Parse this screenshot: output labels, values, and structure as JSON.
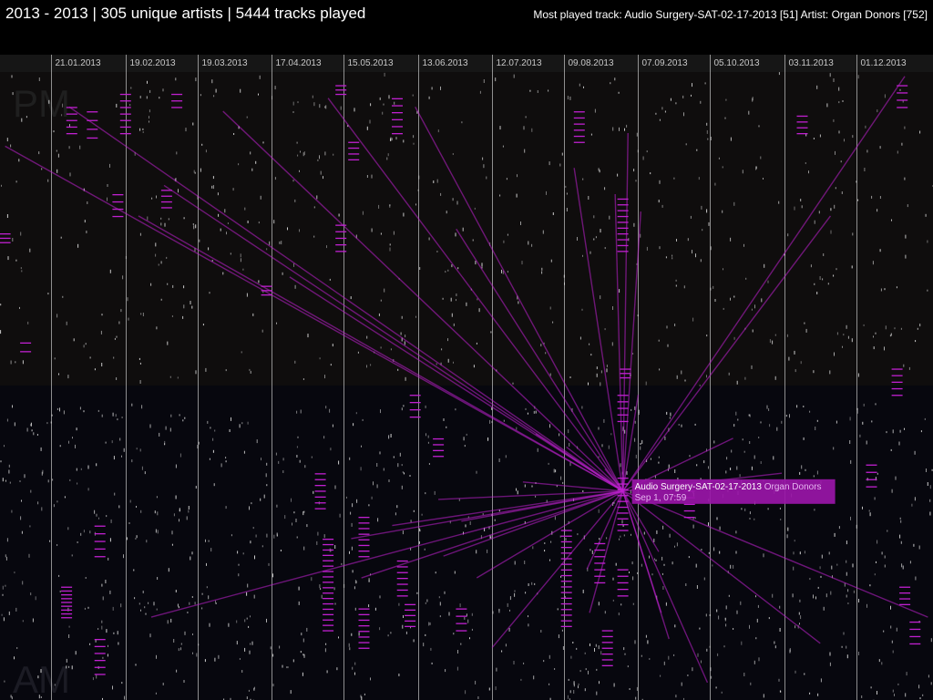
{
  "header": {
    "title": "2013 - 2013 | 305 unique artists | 5444 tracks played",
    "most_played": "Most played track: Audio Surgery-SAT-02-17-2013 [51]  Artist: Organ Donors [752]"
  },
  "colors": {
    "background": "#000000",
    "pm_band": "#0f0d0d",
    "am_band": "#07070e",
    "highlight": "#c020d0",
    "highlight_box": "#9a16a8",
    "track_mark": "#dddddd",
    "gridline": "#bbbbbb"
  },
  "chart_data": {
    "type": "scatter",
    "title": "",
    "xlabel": "",
    "ylabel": "",
    "band_labels": [
      "PM",
      "AM"
    ],
    "x_ticks": [
      "21.01.2013",
      "19.02.2013",
      "19.03.2013",
      "17.04.2013",
      "15.05.2013",
      "13.06.2013",
      "12.07.2013",
      "09.08.2013",
      "07.09.2013",
      "05.10.2013",
      "03.11.2013",
      "01.12.2013"
    ],
    "xlim": [
      "2013-01-01",
      "2013-12-31"
    ],
    "ylim": [
      "00:00",
      "24:00"
    ],
    "highlight": {
      "track": "Audio Surgery-SAT-02-17-2013",
      "artist": "Organ Donors",
      "time_label": "Sep 1, 07:59",
      "date": "2013-09-01",
      "time": "07:59"
    },
    "highlight_plays": [
      {
        "date": "2013-01-03",
        "time": "21:10"
      },
      {
        "date": "2013-01-28",
        "time": "22:40"
      },
      {
        "date": "2013-02-24",
        "time": "18:30"
      },
      {
        "date": "2013-03-01",
        "time": "03:10"
      },
      {
        "date": "2013-03-06",
        "time": "19:40"
      },
      {
        "date": "2013-03-29",
        "time": "22:30"
      },
      {
        "date": "2013-04-24",
        "time": "16:10"
      },
      {
        "date": "2013-05-09",
        "time": "23:00"
      },
      {
        "date": "2013-05-18",
        "time": "06:10"
      },
      {
        "date": "2013-05-22",
        "time": "04:40"
      },
      {
        "date": "2013-06-03",
        "time": "06:40"
      },
      {
        "date": "2013-06-12",
        "time": "22:40"
      },
      {
        "date": "2013-06-21",
        "time": "07:40"
      },
      {
        "date": "2013-06-23",
        "time": "05:30"
      },
      {
        "date": "2013-06-28",
        "time": "18:00"
      },
      {
        "date": "2013-06-30",
        "time": "06:50"
      },
      {
        "date": "2013-07-06",
        "time": "04:40"
      },
      {
        "date": "2013-07-12",
        "time": "02:00"
      },
      {
        "date": "2013-07-24",
        "time": "08:20"
      },
      {
        "date": "2013-07-29",
        "time": "10:10"
      },
      {
        "date": "2013-08-10",
        "time": "09:40"
      },
      {
        "date": "2013-08-13",
        "time": "20:20"
      },
      {
        "date": "2013-08-18",
        "time": "05:00"
      },
      {
        "date": "2013-08-19",
        "time": "03:20"
      },
      {
        "date": "2013-08-25",
        "time": "08:50"
      },
      {
        "date": "2013-08-29",
        "time": "19:20"
      },
      {
        "date": "2013-09-03",
        "time": "21:40"
      },
      {
        "date": "2013-09-07",
        "time": "11:40"
      },
      {
        "date": "2013-09-08",
        "time": "18:40"
      },
      {
        "date": "2013-09-15",
        "time": "05:40"
      },
      {
        "date": "2013-09-16",
        "time": "03:20"
      },
      {
        "date": "2013-09-19",
        "time": "02:20"
      },
      {
        "date": "2013-10-04",
        "time": "00:40"
      },
      {
        "date": "2013-10-14",
        "time": "10:00"
      },
      {
        "date": "2013-11-02",
        "time": "08:40"
      },
      {
        "date": "2013-11-17",
        "time": "02:10"
      },
      {
        "date": "2013-11-21",
        "time": "18:30"
      },
      {
        "date": "2013-12-20",
        "time": "23:50"
      },
      {
        "date": "2013-12-29",
        "time": "03:10"
      }
    ],
    "track_clusters": [
      {
        "date": "2013-01-03",
        "start": "17:50",
        "end": "17:30",
        "count": 3
      },
      {
        "date": "2013-01-11",
        "start": "13:40",
        "end": "13:20",
        "count": 2
      },
      {
        "date": "2013-01-27",
        "start": "04:20",
        "end": "03:10",
        "count": 9
      },
      {
        "date": "2013-01-29",
        "start": "22:40",
        "end": "21:40",
        "count": 5
      },
      {
        "date": "2013-02-06",
        "start": "22:30",
        "end": "21:30",
        "count": 4
      },
      {
        "date": "2013-02-09",
        "start": "02:20",
        "end": "01:00",
        "count": 6
      },
      {
        "date": "2013-02-09",
        "start": "06:40",
        "end": "05:30",
        "count": 5
      },
      {
        "date": "2013-02-16",
        "start": "19:20",
        "end": "18:30",
        "count": 4
      },
      {
        "date": "2013-02-19",
        "start": "23:10",
        "end": "21:40",
        "count": 7
      },
      {
        "date": "2013-03-07",
        "start": "19:30",
        "end": "18:50",
        "count": 4
      },
      {
        "date": "2013-03-11",
        "start": "23:10",
        "end": "22:40",
        "count": 3
      },
      {
        "date": "2013-04-15",
        "start": "15:50",
        "end": "15:30",
        "count": 3
      },
      {
        "date": "2013-05-06",
        "start": "08:40",
        "end": "07:20",
        "count": 7
      },
      {
        "date": "2013-05-09",
        "start": "06:10",
        "end": "02:40",
        "count": 18
      },
      {
        "date": "2013-05-14",
        "start": "23:30",
        "end": "23:10",
        "count": 3
      },
      {
        "date": "2013-05-14",
        "start": "18:10",
        "end": "17:10",
        "count": 5
      },
      {
        "date": "2013-05-19",
        "start": "21:20",
        "end": "20:40",
        "count": 4
      },
      {
        "date": "2013-05-23",
        "start": "07:00",
        "end": "05:30",
        "count": 8
      },
      {
        "date": "2013-05-23",
        "start": "03:30",
        "end": "02:00",
        "count": 8
      },
      {
        "date": "2013-06-05",
        "start": "23:00",
        "end": "21:40",
        "count": 6
      },
      {
        "date": "2013-06-07",
        "start": "05:20",
        "end": "04:00",
        "count": 7
      },
      {
        "date": "2013-06-10",
        "start": "03:40",
        "end": "02:50",
        "count": 5
      },
      {
        "date": "2013-06-12",
        "start": "11:40",
        "end": "10:50",
        "count": 4
      },
      {
        "date": "2013-06-21",
        "start": "10:00",
        "end": "09:20",
        "count": 4
      },
      {
        "date": "2013-06-30",
        "start": "03:30",
        "end": "02:40",
        "count": 4
      },
      {
        "date": "2013-08-10",
        "start": "06:30",
        "end": "02:50",
        "count": 18
      },
      {
        "date": "2013-08-15",
        "start": "22:30",
        "end": "21:20",
        "count": 6
      },
      {
        "date": "2013-08-23",
        "start": "06:00",
        "end": "04:30",
        "count": 7
      },
      {
        "date": "2013-08-26",
        "start": "02:40",
        "end": "01:20",
        "count": 7
      },
      {
        "date": "2013-09-01",
        "start": "19:10",
        "end": "17:10",
        "count": 10
      },
      {
        "date": "2013-09-01",
        "start": "11:40",
        "end": "10:40",
        "count": 5
      },
      {
        "date": "2013-09-01",
        "start": "08:30",
        "end": "06:30",
        "count": 10
      },
      {
        "date": "2013-09-01",
        "start": "05:00",
        "end": "04:00",
        "count": 5
      },
      {
        "date": "2013-09-02",
        "start": "12:40",
        "end": "12:20",
        "count": 3
      },
      {
        "date": "2013-09-27",
        "start": "08:00",
        "end": "07:00",
        "count": 5
      },
      {
        "date": "2013-11-10",
        "start": "22:20",
        "end": "21:40",
        "count": 4
      },
      {
        "date": "2013-12-07",
        "start": "09:00",
        "end": "08:10",
        "count": 4
      },
      {
        "date": "2013-12-17",
        "start": "12:40",
        "end": "11:40",
        "count": 5
      },
      {
        "date": "2013-12-19",
        "start": "23:30",
        "end": "22:40",
        "count": 4
      },
      {
        "date": "2013-12-20",
        "start": "04:20",
        "end": "03:40",
        "count": 4
      },
      {
        "date": "2013-12-24",
        "start": "03:00",
        "end": "02:10",
        "count": 4
      }
    ]
  }
}
